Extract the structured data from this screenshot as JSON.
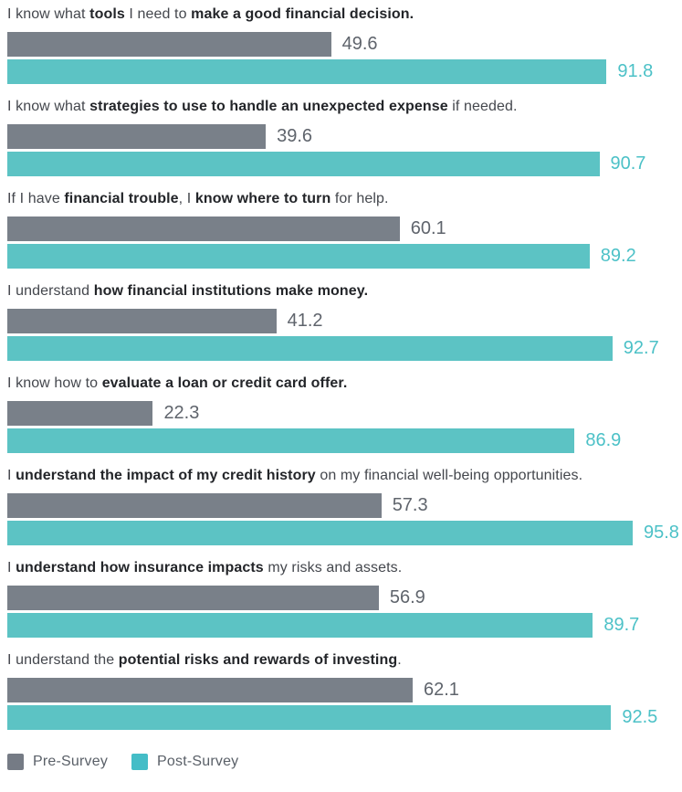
{
  "chart_data": {
    "type": "bar",
    "orientation": "horizontal",
    "title": "",
    "xlabel": "",
    "ylabel": "",
    "xlim": [
      0,
      100
    ],
    "grid": false,
    "legend_position": "bottom-left",
    "legend": [
      {
        "label": "Pre-Survey",
        "color": "#757b85"
      },
      {
        "label": "Post-Survey",
        "color": "#44bdc7"
      }
    ],
    "series_names": [
      "Pre-Survey",
      "Post-Survey"
    ],
    "items": [
      {
        "statement": [
          {
            "t": "I know what ",
            "b": false
          },
          {
            "t": "tools",
            "b": true
          },
          {
            "t": " I need to ",
            "b": false
          },
          {
            "t": "make a good financial decision.",
            "b": true
          }
        ],
        "pre": 49.6,
        "post": 91.8
      },
      {
        "statement": [
          {
            "t": "I know what ",
            "b": false
          },
          {
            "t": "strategies to use to handle an unexpected expense",
            "b": true
          },
          {
            "t": " if needed.",
            "b": false
          }
        ],
        "pre": 39.6,
        "post": 90.7
      },
      {
        "statement": [
          {
            "t": "If I have ",
            "b": false
          },
          {
            "t": "financial trouble",
            "b": true
          },
          {
            "t": ", I ",
            "b": false
          },
          {
            "t": "know where to turn",
            "b": true
          },
          {
            "t": " for help.",
            "b": false
          }
        ],
        "pre": 60.1,
        "post": 89.2
      },
      {
        "statement": [
          {
            "t": "I understand ",
            "b": false
          },
          {
            "t": "how financial institutions make money.",
            "b": true
          }
        ],
        "pre": 41.2,
        "post": 92.7
      },
      {
        "statement": [
          {
            "t": "I know how to ",
            "b": false
          },
          {
            "t": "evaluate a loan or credit card offer.",
            "b": true
          }
        ],
        "pre": 22.3,
        "post": 86.9
      },
      {
        "statement": [
          {
            "t": "I ",
            "b": false
          },
          {
            "t": "understand the impact of my credit history",
            "b": true
          },
          {
            "t": " on my financial well-being opportunities.",
            "b": false
          }
        ],
        "pre": 57.3,
        "post": 95.8
      },
      {
        "statement": [
          {
            "t": "I ",
            "b": false
          },
          {
            "t": "understand how insurance impacts",
            "b": true
          },
          {
            "t": " my risks and assets.",
            "b": false
          }
        ],
        "pre": 56.9,
        "post": 89.7
      },
      {
        "statement": [
          {
            "t": "I understand the ",
            "b": false
          },
          {
            "t": "potential risks and rewards of investing",
            "b": true
          },
          {
            "t": ".",
            "b": false
          }
        ],
        "pre": 62.1,
        "post": 92.5
      }
    ]
  },
  "colors": {
    "pre_bar": "#798089",
    "post_bar": "#5cc3c4",
    "pre_value": "#5f646c",
    "post_value": "#4cc1c7",
    "statement_regular": "#44474d",
    "statement_bold": "#232529",
    "legend_text": "#5a6068"
  }
}
